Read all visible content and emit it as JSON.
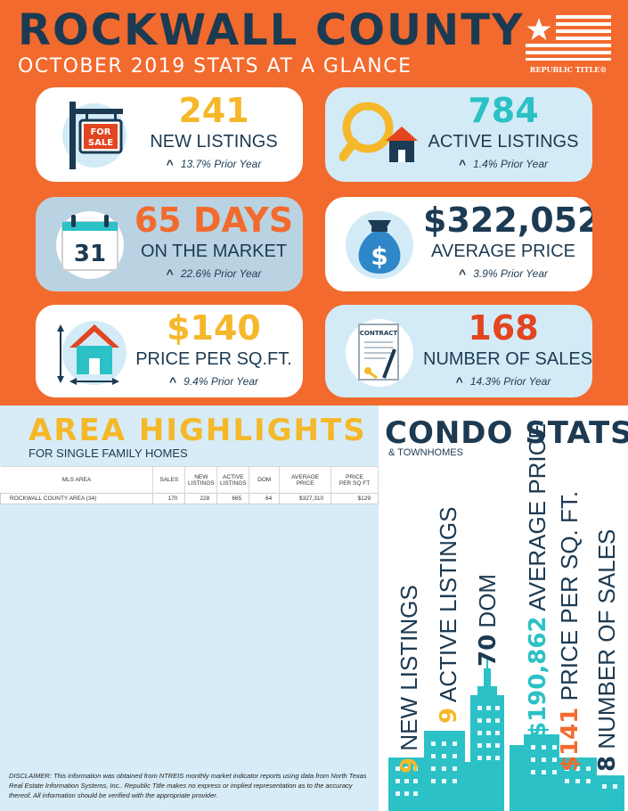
{
  "header": {
    "title": "ROCKWALL COUNTY",
    "subtitle": "OCTOBER 2019 STATS AT A GLANCE",
    "logo_text": "REPUBLIC TITLE®"
  },
  "colors": {
    "orange": "#f26a2d",
    "navy": "#1c3a52",
    "yellow": "#f5b82a",
    "teal": "#2bc1c6",
    "red": "#e2451f",
    "light_blue": "#d2ebf6"
  },
  "stats": [
    {
      "icon": "for-sale-sign-icon",
      "value": "241",
      "label": "NEW LISTINGS",
      "change": "13.7% Prior Year"
    },
    {
      "icon": "magnifier-house-icon",
      "value": "784",
      "label": "ACTIVE LISTINGS",
      "change": "1.4% Prior Year"
    },
    {
      "icon": "calendar-icon",
      "icon_text": "31",
      "value": "65 DAYS",
      "label": "ON THE MARKET",
      "change": "22.6% Prior Year"
    },
    {
      "icon": "money-bag-icon",
      "value": "$322,052",
      "label": "AVERAGE PRICE",
      "change": "3.9% Prior Year"
    },
    {
      "icon": "house-measure-icon",
      "value": "$140",
      "label": "PRICE PER SQ.FT.",
      "change": "9.4% Prior Year"
    },
    {
      "icon": "contract-icon",
      "icon_text": "CONTRACT",
      "value": "168",
      "label": "NUMBER OF SALES",
      "change": "14.3% Prior Year"
    }
  ],
  "area": {
    "title": "AREA HIGHLIGHTS",
    "subtitle": "FOR SINGLE FAMILY HOMES",
    "headers": [
      "MLS AREA",
      "SALES",
      "NEW\nLISTINGS",
      "ACTIVE\nLISTINGS",
      "DOM",
      "AVERAGE\nPRICE",
      "PRICE\nPER SQ FT"
    ],
    "rows": [
      [
        "ROCKWALL COUNTY AREA (34)",
        "170",
        "228",
        "665",
        "64",
        "$327,310",
        "$129"
      ]
    ],
    "disclaimer": "DISCLAIMER: This information was obtained from NTREIS monthly market indicator reports using data from North Texas Real Estate Information Systems, Inc..  Republic Title makes no express or implied representation as to the accuracy thereof.  All information should be verified with the appropriate provider."
  },
  "condo": {
    "title": "CONDO STATS",
    "subtitle": "& TOWNHOMES",
    "stats": [
      {
        "value": "9",
        "label": "NEW LISTINGS",
        "color": "#f5b82a"
      },
      {
        "value": "9",
        "label": "ACTIVE LISTINGS",
        "color": "#f5b82a"
      },
      {
        "value": "70",
        "label": "DOM",
        "color": "#1c3a52"
      },
      {
        "value": "$190,862",
        "label": "AVERAGE PRICE",
        "color": "#2bc1c6"
      },
      {
        "value": "$141",
        "label": "PRICE PER SQ. FT.",
        "color": "#f26a2d"
      },
      {
        "value": "8",
        "label": "NUMBER OF SALES",
        "color": "#1c3a52"
      }
    ]
  }
}
